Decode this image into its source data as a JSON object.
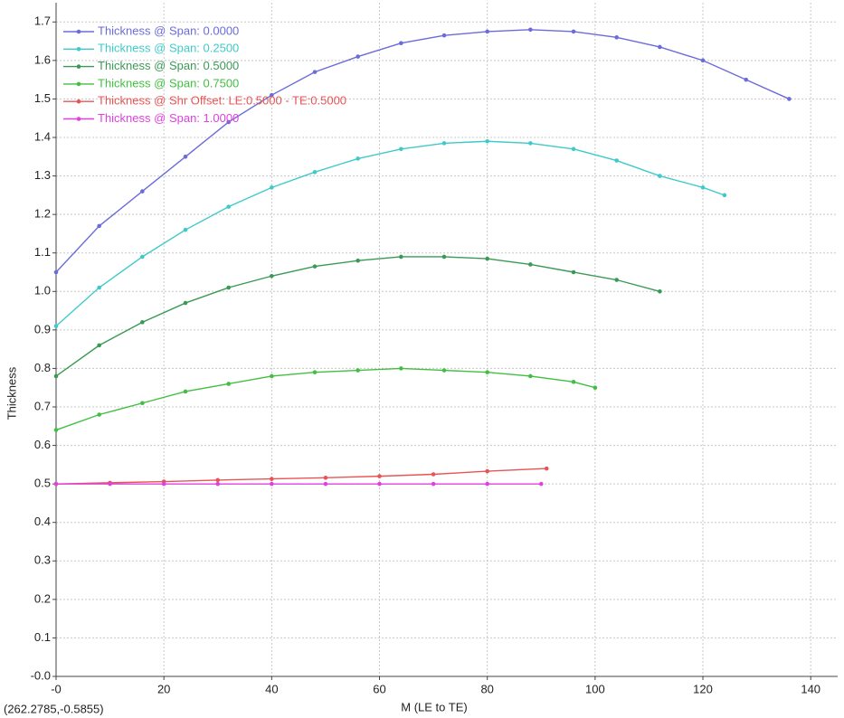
{
  "chart_data": {
    "type": "line",
    "x_label": "M (LE to TE)",
    "y_label": "Thickness",
    "cursor_readout": "(262.2785,-0.5855)",
    "xlim": [
      0,
      145
    ],
    "ylim": [
      0,
      1.75
    ],
    "xticks": [
      {
        "value": 0,
        "label": "-0"
      },
      20,
      40,
      60,
      80,
      100,
      120,
      140
    ],
    "yticks": [
      {
        "value": 0,
        "label": "-0.0"
      },
      0.1,
      0.2,
      0.3,
      0.4,
      0.5,
      0.6,
      0.7,
      0.8,
      0.9,
      {
        "value": 1,
        "label": "1.0"
      },
      1.1,
      1.2,
      1.3,
      1.4,
      1.5,
      1.6,
      1.7
    ],
    "grid": true,
    "legend": "upper left",
    "series": [
      {
        "name": "Thickness @ Span: 0.0000",
        "color": "#6b6bdc",
        "x": [
          0,
          8,
          16,
          24,
          32,
          40,
          48,
          56,
          64,
          72,
          80,
          88,
          96,
          104,
          112,
          120,
          128,
          136
        ],
        "values": [
          1.05,
          1.17,
          1.26,
          1.35,
          1.44,
          1.51,
          1.57,
          1.61,
          1.645,
          1.665,
          1.675,
          1.68,
          1.675,
          1.66,
          1.635,
          1.6,
          1.55,
          1.5
        ]
      },
      {
        "name": "Thickness @ Span: 0.2500",
        "color": "#3fcaca",
        "x": [
          0,
          8,
          16,
          24,
          32,
          40,
          48,
          56,
          64,
          72,
          80,
          88,
          96,
          104,
          112,
          120,
          124
        ],
        "values": [
          0.91,
          1.01,
          1.09,
          1.16,
          1.22,
          1.27,
          1.31,
          1.345,
          1.37,
          1.385,
          1.39,
          1.385,
          1.37,
          1.34,
          1.3,
          1.27,
          1.25
        ]
      },
      {
        "name": "Thickness @ Span: 0.5000",
        "color": "#3a9a55",
        "x": [
          0,
          8,
          16,
          24,
          32,
          40,
          48,
          56,
          64,
          72,
          80,
          88,
          96,
          104,
          112
        ],
        "values": [
          0.78,
          0.86,
          0.92,
          0.97,
          1.01,
          1.04,
          1.065,
          1.08,
          1.09,
          1.09,
          1.085,
          1.07,
          1.05,
          1.03,
          1.0
        ]
      },
      {
        "name": "Thickness @ Span: 0.7500",
        "color": "#42bf42",
        "x": [
          0,
          8,
          16,
          24,
          32,
          40,
          48,
          56,
          64,
          72,
          80,
          88,
          96,
          100
        ],
        "values": [
          0.64,
          0.68,
          0.71,
          0.74,
          0.76,
          0.78,
          0.79,
          0.795,
          0.8,
          0.795,
          0.79,
          0.78,
          0.765,
          0.75
        ]
      },
      {
        "name": "Thickness @ Shr Offset: LE:0.5000 - TE:0.5000",
        "color": "#e85454",
        "x": [
          0,
          10,
          20,
          30,
          40,
          50,
          60,
          70,
          80,
          91
        ],
        "values": [
          0.5,
          0.503,
          0.506,
          0.51,
          0.513,
          0.516,
          0.52,
          0.525,
          0.533,
          0.54
        ]
      },
      {
        "name": "Thickness @ Span: 1.0000",
        "color": "#e040e0",
        "x": [
          0,
          10,
          20,
          30,
          40,
          50,
          60,
          70,
          80,
          90
        ],
        "values": [
          0.5,
          0.5,
          0.5,
          0.5,
          0.5,
          0.5,
          0.5,
          0.5,
          0.5,
          0.5
        ]
      }
    ]
  }
}
